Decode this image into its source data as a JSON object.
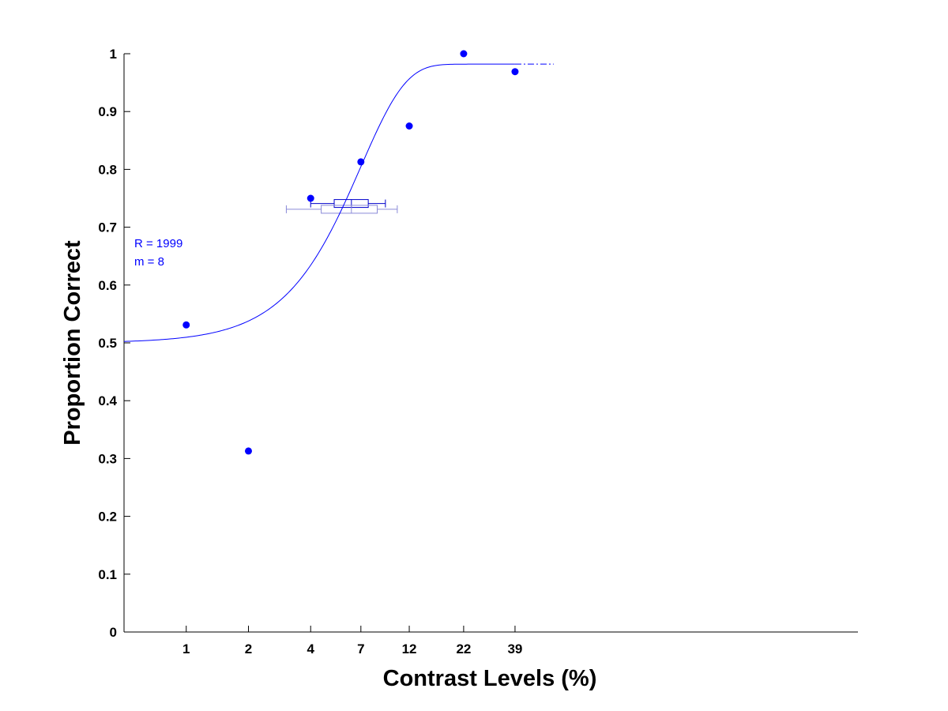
{
  "chart_data": {
    "type": "scatter",
    "title": "",
    "xlabel": "Contrast Levels (%)",
    "ylabel": "Proportion Correct",
    "x_scale": "log",
    "x_ticks": [
      1,
      2,
      4,
      7,
      12,
      22,
      39
    ],
    "x_tick_labels": [
      "1",
      "2",
      "4",
      "7",
      "12",
      "22",
      "39"
    ],
    "xlim": [
      0.5,
      1780
    ],
    "ylim": [
      0,
      1
    ],
    "y_ticks": [
      0,
      0.1,
      0.2,
      0.3,
      0.4,
      0.5,
      0.6,
      0.7,
      0.8,
      0.9,
      1
    ],
    "y_tick_labels": [
      "0",
      "0.1",
      "0.2",
      "0.3",
      "0.4",
      "0.5",
      "0.6",
      "0.7",
      "0.8",
      "0.9",
      "1"
    ],
    "grid": false,
    "series": [
      {
        "kind": "points",
        "color": "#0000ff",
        "x": [
          1,
          2,
          4,
          7,
          12,
          22,
          39
        ],
        "y": [
          0.531,
          0.313,
          0.75,
          0.813,
          0.875,
          1.0,
          0.969
        ]
      },
      {
        "kind": "fitted-curve",
        "color": "#0000ff",
        "function": "weibull",
        "guess_rate": 0.5,
        "lapse_rate": 0.018,
        "threshold": 7.0,
        "slope": 2.0,
        "x_range": [
          0.5,
          60
        ]
      }
    ],
    "threshold_boxplots": [
      {
        "color": "#0000cc",
        "y": 0.741,
        "whisker_low": 4.0,
        "q1": 5.2,
        "median": 6.3,
        "q3": 7.6,
        "whisker_high": 9.2
      },
      {
        "color": "#8a8ad8",
        "y": 0.731,
        "whisker_low": 3.05,
        "q1": 4.5,
        "median": 6.3,
        "q3": 8.4,
        "whisker_high": 10.5
      }
    ],
    "annotations": [
      "R = 1999",
      "m = 8"
    ]
  }
}
